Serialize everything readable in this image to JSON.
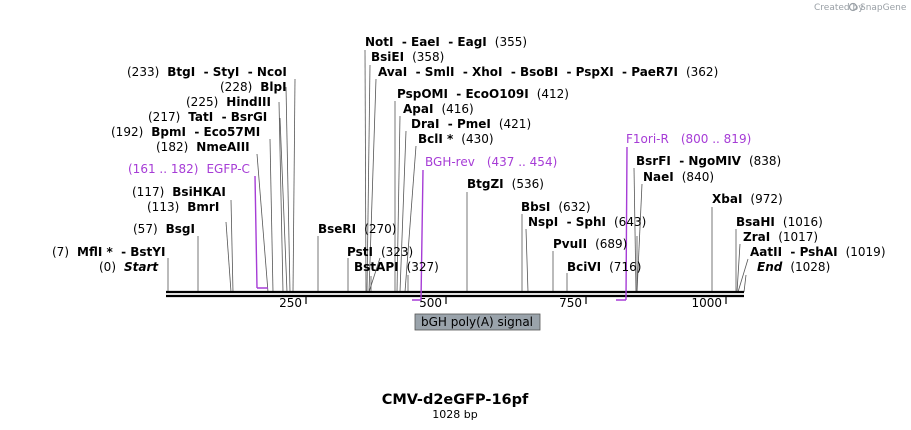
{
  "credit": {
    "prefix": "Created by",
    "brand": "SnapGene"
  },
  "map": {
    "name": "CMV-d2eGFP-16pf",
    "length_label": "1028 bp"
  },
  "axis": {
    "ticks": [
      "250",
      "500",
      "750",
      "1000"
    ]
  },
  "sites": [
    {
      "id": "notI",
      "label": "NotI  - EaeI  - EagI",
      "pos": "(355)"
    },
    {
      "id": "bsiEI",
      "label": "BsiEI",
      "pos": "(358)"
    },
    {
      "id": "avaI",
      "label": "AvaI  - SmlI  - XhoI  - BsoBI  - PspXI  - PaeR7I",
      "pos": "(362)"
    },
    {
      "id": "btgI",
      "label": "BtgI  - StyI  - NcoI",
      "pos": "(233)"
    },
    {
      "id": "blpI",
      "label": "BlpI",
      "pos": "(228)"
    },
    {
      "id": "pspOMI",
      "label": "PspOMI  - EcoO109I",
      "pos": "(412)"
    },
    {
      "id": "hindIII",
      "label": "HindIII",
      "pos": "(225)"
    },
    {
      "id": "apaI",
      "label": "ApaI",
      "pos": "(416)"
    },
    {
      "id": "tatI",
      "label": "TatI  - BsrGI",
      "pos": "(217)"
    },
    {
      "id": "draI",
      "label": "DraI  - PmeI",
      "pos": "(421)"
    },
    {
      "id": "bpmI",
      "label": "BpmI  - Eco57MI",
      "pos": "(192)"
    },
    {
      "id": "bclI",
      "label": "BclI *",
      "pos": "(430)"
    },
    {
      "id": "nmeAIII",
      "label": "NmeAIII",
      "pos": "(182)"
    },
    {
      "id": "bsrFI",
      "label": "BsrFI  - NgoMIV",
      "pos": "(838)"
    },
    {
      "id": "naeI",
      "label": "NaeI",
      "pos": "(840)"
    },
    {
      "id": "btgZI",
      "label": "BtgZI",
      "pos": "(536)"
    },
    {
      "id": "bsiHKAI",
      "label": "BsiHKAI",
      "pos": "(117)"
    },
    {
      "id": "xbaI",
      "label": "XbaI",
      "pos": "(972)"
    },
    {
      "id": "bmrI",
      "label": "BmrI",
      "pos": "(113)"
    },
    {
      "id": "bbsI",
      "label": "BbsI",
      "pos": "(632)"
    },
    {
      "id": "nspI",
      "label": "NspI  - SphI",
      "pos": "(643)"
    },
    {
      "id": "bsaHI",
      "label": "BsaHI",
      "pos": "(1016)"
    },
    {
      "id": "bsgI",
      "label": "BsgI",
      "pos": "(57)"
    },
    {
      "id": "bseRI",
      "label": "BseRI",
      "pos": "(270)"
    },
    {
      "id": "zraI",
      "label": "ZraI",
      "pos": "(1017)"
    },
    {
      "id": "pvuII",
      "label": "PvuII",
      "pos": "(689)"
    },
    {
      "id": "pstI",
      "label": "PstI",
      "pos": "(323)"
    },
    {
      "id": "mflI",
      "label": "MflI *  - BstYI",
      "pos": "(7)"
    },
    {
      "id": "aatII",
      "label": "AatII  - PshAI",
      "pos": "(1019)"
    },
    {
      "id": "bstAPI",
      "label": "BstAPI",
      "pos": "(327)"
    },
    {
      "id": "bciVI",
      "label": "BciVI",
      "pos": "(716)"
    }
  ],
  "ends": [
    {
      "id": "start",
      "pos": "(0)",
      "label": "Start"
    },
    {
      "id": "end",
      "pos": "(1028)",
      "label": "End"
    }
  ],
  "primers": [
    {
      "id": "egfpC",
      "range": "(161 .. 182)",
      "label": "EGFP-C"
    },
    {
      "id": "bghRev",
      "label": "BGH-rev",
      "range": "(437 .. 454)"
    },
    {
      "id": "f1oriR",
      "label": "F1ori-R",
      "range": "(800 .. 819)"
    }
  ],
  "feature": {
    "label": "bGH poly(A) signal"
  },
  "colors": {
    "primer": "#a63cd6",
    "feature_fill": "#9aa3ab",
    "backbone": "#000000",
    "leader": "#555555"
  }
}
